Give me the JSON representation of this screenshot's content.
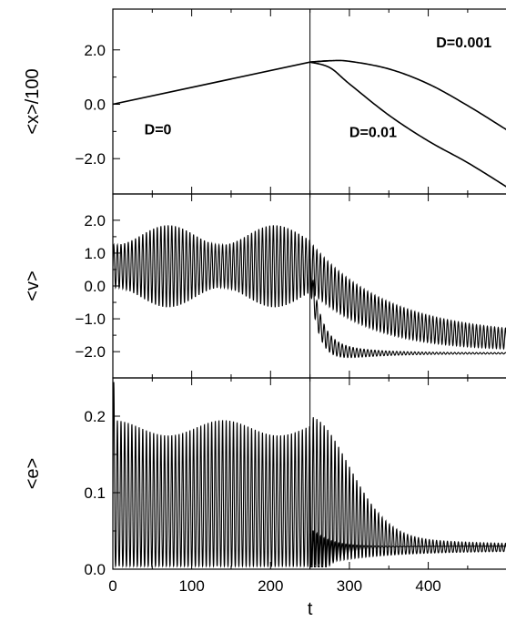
{
  "chart_data": [
    {
      "type": "line",
      "panel": "top",
      "xlabel": "",
      "ylabel": "<x>/100",
      "xlim": [
        0,
        500
      ],
      "ylim": [
        -3.3,
        3.5
      ],
      "yticks": [
        2.0,
        0.0,
        -2.0
      ],
      "ytick_labels": [
        "2.0",
        "0.0",
        "−2.0"
      ],
      "annotations": [
        {
          "text": "D=0",
          "x": 40,
          "y": -1.1
        },
        {
          "text": "D=0.01",
          "x": 300,
          "y": -1.2
        },
        {
          "text": "D=0.001",
          "x": 410,
          "y": 2.1
        }
      ],
      "series": [
        {
          "x": [
            0,
            250,
            275
          ],
          "y": [
            0.0,
            1.55,
            1.6
          ]
        },
        {
          "x": [
            250,
            275,
            300,
            350,
            400,
            450,
            500
          ],
          "y": [
            1.55,
            1.6,
            1.58,
            1.3,
            0.75,
            -0.05,
            -0.95
          ]
        },
        {
          "x": [
            250,
            275,
            300,
            350,
            400,
            450,
            500
          ],
          "y": [
            1.55,
            1.35,
            0.75,
            -0.4,
            -1.35,
            -2.15,
            -3.05
          ]
        }
      ]
    },
    {
      "type": "line",
      "panel": "middle",
      "xlabel": "",
      "ylabel": "<v>",
      "xlim": [
        0,
        500
      ],
      "ylim": [
        -2.8,
        2.8
      ],
      "yticks": [
        2.0,
        1.0,
        0.0,
        -1.0,
        -2.0
      ],
      "ytick_labels": [
        "2.0",
        "1.0",
        "0.0",
        "−1.0",
        "−2.0"
      ],
      "series": [
        {
          "description": "D=0 then D=0.001 oscillation",
          "t_switch": 250,
          "center_before": 0.6,
          "amp_before_min": 0.7,
          "amp_before_max": 1.25,
          "center_after_end": -1.75,
          "amp_after_end": 0.15
        },
        {
          "description": "D=0.01 branch",
          "t_switch": 250,
          "center_after_end": -2.05
        }
      ]
    },
    {
      "type": "line",
      "panel": "bottom",
      "xlabel": "t",
      "ylabel": "<e>",
      "xlim": [
        0,
        500
      ],
      "ylim": [
        0.0,
        0.25
      ],
      "xticks": [
        0,
        100,
        200,
        300,
        400
      ],
      "xtick_labels": [
        "0",
        "100",
        "200",
        "300",
        "400"
      ],
      "yticks": [
        0.0,
        0.1,
        0.2
      ],
      "ytick_labels": [
        "0.0",
        "0.1",
        "0.2"
      ],
      "series": [
        {
          "description": "energy oscillation",
          "max_before": 0.195,
          "min_before": 0.003,
          "t_switch": 250,
          "end_value": 0.03
        }
      ]
    }
  ],
  "vertical_marker": {
    "x": 250
  }
}
